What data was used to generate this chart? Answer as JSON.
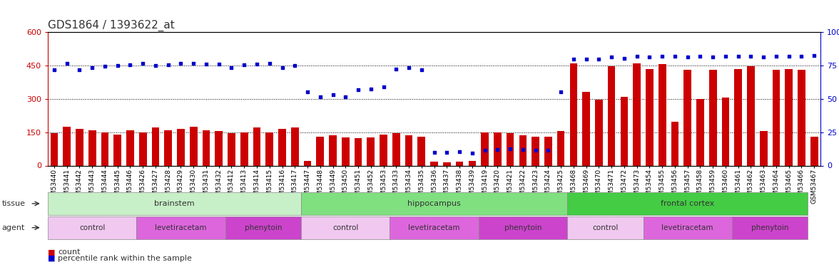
{
  "title": "GDS1864 / 1393622_at",
  "samples": [
    "GSM53440",
    "GSM53441",
    "GSM53442",
    "GSM53443",
    "GSM53444",
    "GSM53445",
    "GSM53446",
    "GSM53426",
    "GSM53427",
    "GSM53428",
    "GSM53429",
    "GSM53430",
    "GSM53431",
    "GSM53432",
    "GSM53412",
    "GSM53413",
    "GSM53414",
    "GSM53415",
    "GSM53416",
    "GSM53417",
    "GSM53447",
    "GSM53448",
    "GSM53449",
    "GSM53450",
    "GSM53451",
    "GSM53452",
    "GSM53453",
    "GSM53433",
    "GSM53434",
    "GSM53435",
    "GSM53436",
    "GSM53437",
    "GSM53438",
    "GSM53439",
    "GSM53419",
    "GSM53420",
    "GSM53421",
    "GSM53422",
    "GSM53423",
    "GSM53424",
    "GSM53425",
    "GSM53468",
    "GSM53469",
    "GSM53470",
    "GSM53471",
    "GSM53472",
    "GSM53473",
    "GSM53454",
    "GSM53455",
    "GSM53456",
    "GSM53457",
    "GSM53458",
    "GSM53459",
    "GSM53460",
    "GSM53461",
    "GSM53462",
    "GSM53463",
    "GSM53464",
    "GSM53465",
    "GSM53466",
    "GSM53467"
  ],
  "counts": [
    145,
    175,
    165,
    160,
    148,
    140,
    160,
    150,
    170,
    160,
    165,
    175,
    160,
    155,
    145,
    150,
    170,
    148,
    165,
    170,
    20,
    130,
    135,
    128,
    122,
    125,
    140,
    145,
    135,
    130,
    18,
    16,
    18,
    20,
    150,
    150,
    145,
    135,
    130,
    130,
    155,
    460,
    330,
    295,
    445,
    310,
    460,
    435,
    455,
    198,
    430,
    300,
    430,
    305,
    435,
    445,
    155,
    430,
    435,
    430,
    130
  ],
  "percentiles": [
    430,
    460,
    430,
    440,
    445,
    450,
    452,
    460,
    450,
    452,
    460,
    458,
    455,
    456,
    440,
    452,
    455,
    460,
    440,
    450,
    330,
    308,
    318,
    310,
    340,
    345,
    355,
    435,
    440,
    430,
    60,
    58,
    62,
    55,
    68,
    72,
    75,
    73,
    70,
    68,
    330,
    480,
    480,
    480,
    488,
    482,
    490,
    488,
    490,
    490,
    488,
    492,
    488,
    490,
    490,
    492,
    488,
    490,
    490,
    492,
    493
  ],
  "tissue_groups": [
    {
      "label": "brainstem",
      "start": 0,
      "end": 20,
      "color": "#c8f0c8"
    },
    {
      "label": "hippocampus",
      "start": 20,
      "end": 41,
      "color": "#80e080"
    },
    {
      "label": "frontal cortex",
      "start": 41,
      "end": 60,
      "color": "#44cc44"
    }
  ],
  "agent_groups": [
    {
      "label": "control",
      "start": 0,
      "end": 7,
      "color": "#f0c8f0"
    },
    {
      "label": "levetiracetam",
      "start": 7,
      "end": 14,
      "color": "#dd66dd"
    },
    {
      "label": "phenytoin",
      "start": 14,
      "end": 20,
      "color": "#cc44cc"
    },
    {
      "label": "control",
      "start": 20,
      "end": 27,
      "color": "#f0c8f0"
    },
    {
      "label": "levetiracetam",
      "start": 27,
      "end": 34,
      "color": "#dd66dd"
    },
    {
      "label": "phenytoin",
      "start": 34,
      "end": 41,
      "color": "#cc44cc"
    },
    {
      "label": "control",
      "start": 41,
      "end": 47,
      "color": "#f0c8f0"
    },
    {
      "label": "levetiracetam",
      "start": 47,
      "end": 54,
      "color": "#dd66dd"
    },
    {
      "label": "phenytoin",
      "start": 54,
      "end": 60,
      "color": "#cc44cc"
    }
  ],
  "ylim_left": [
    0,
    600
  ],
  "yticks_left": [
    0,
    150,
    300,
    450,
    600
  ],
  "ytick_labels_right": [
    "0",
    "25",
    "50",
    "75",
    "100%"
  ],
  "bar_color": "#cc0000",
  "dot_color": "#0000cc",
  "grid_color": "#000000",
  "bg_color": "#ffffff",
  "title_fontsize": 11,
  "tick_fontsize": 6.5
}
